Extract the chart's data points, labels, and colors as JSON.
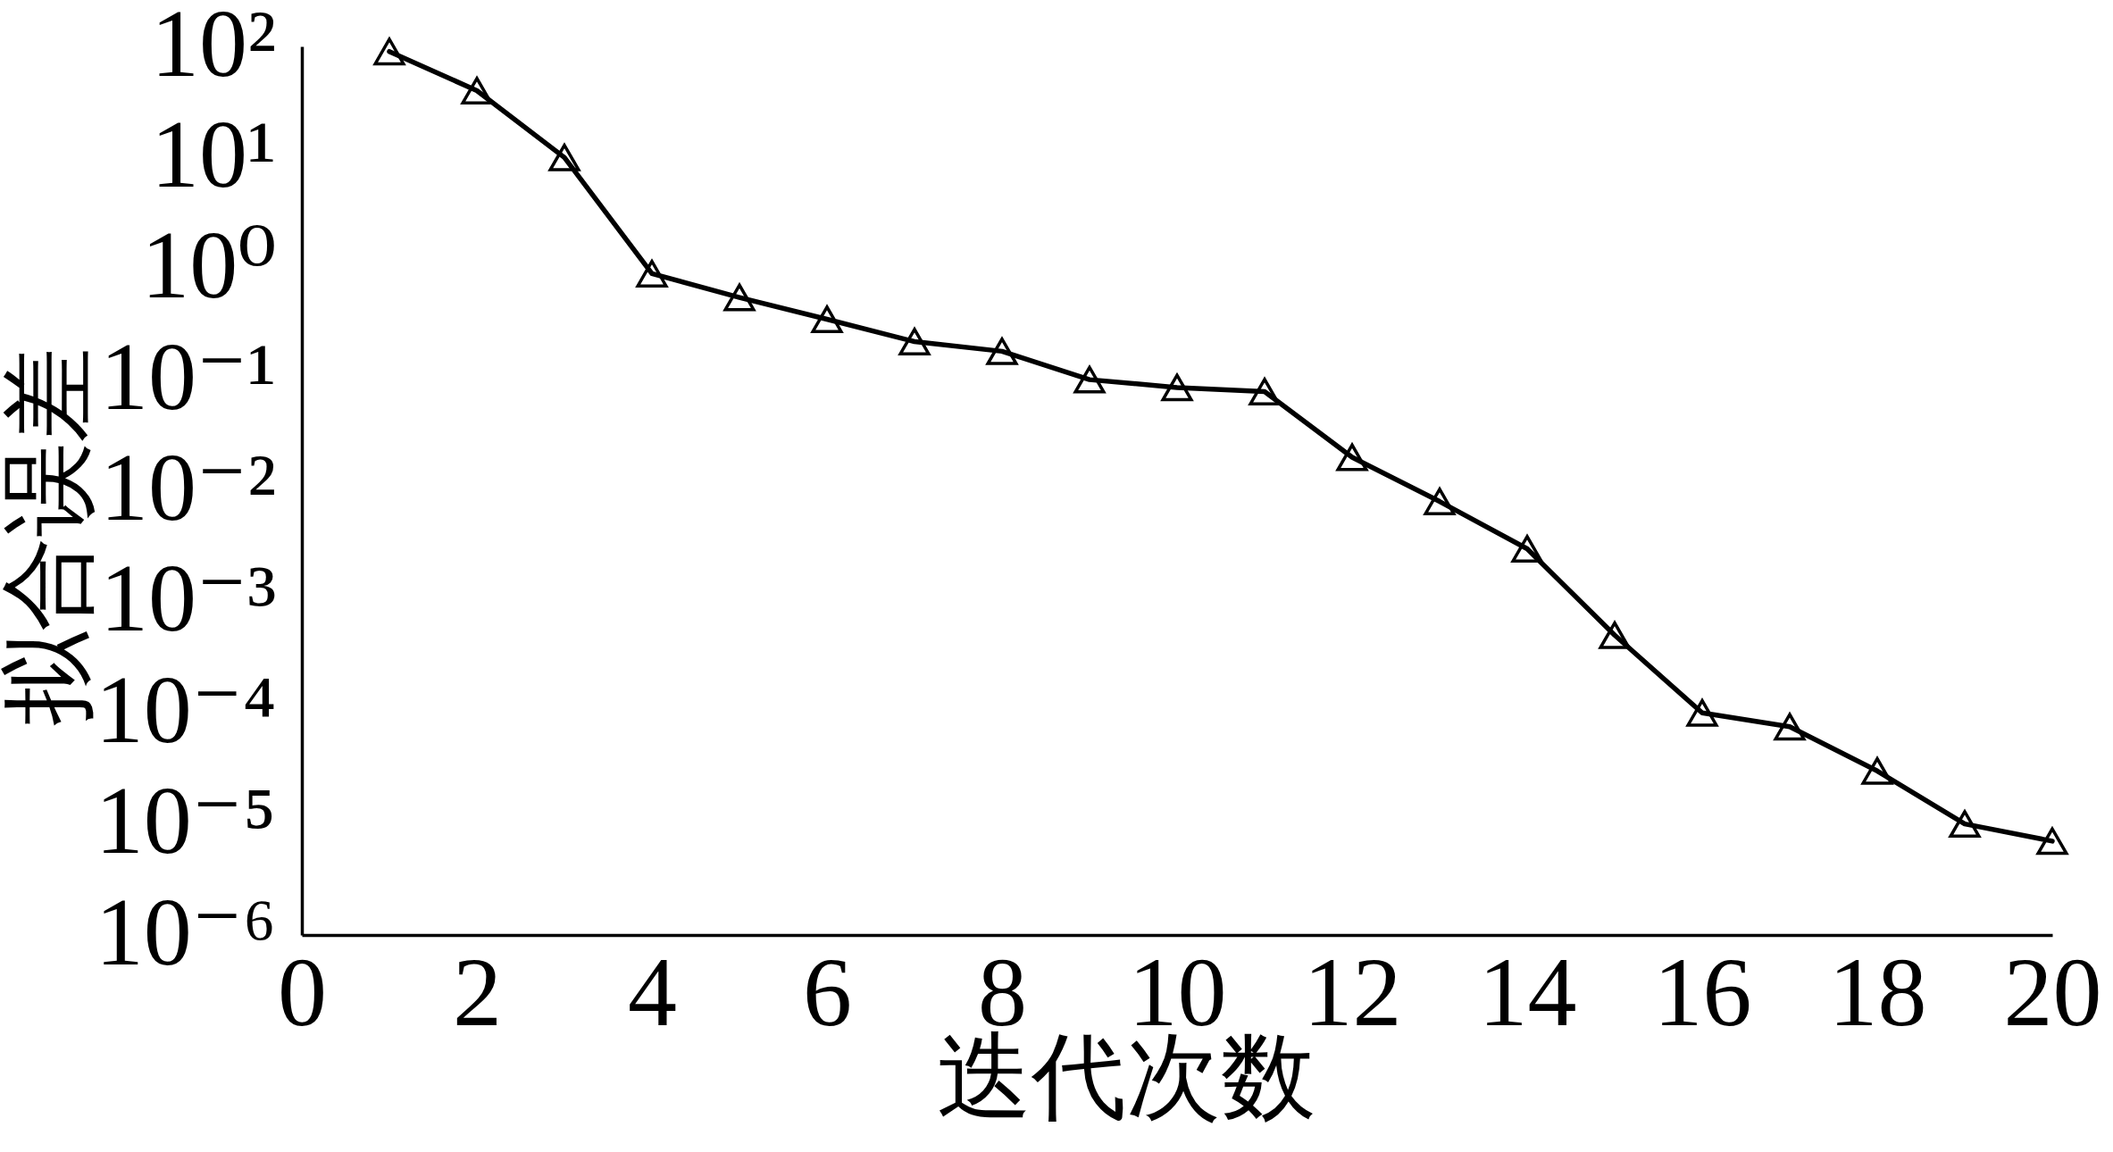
{
  "chart_data": {
    "type": "line",
    "xlabel": "迭代次数",
    "ylabel": "拟合误差",
    "x": [
      1,
      2,
      3,
      4,
      5,
      6,
      7,
      8,
      9,
      10,
      11,
      12,
      13,
      14,
      15,
      16,
      17,
      18,
      19,
      20
    ],
    "series": [
      {
        "color": "#000000",
        "values": [
          90,
          40,
          10,
          0.9,
          0.55,
          0.35,
          0.22,
          0.18,
          0.1,
          0.085,
          0.078,
          0.02,
          0.008,
          0.003,
          0.0005,
          0.0001,
          7.5e-05,
          3e-05,
          1e-05,
          7e-06
        ]
      }
    ],
    "xlim": [
      0,
      20
    ],
    "xticks": [
      0,
      2,
      4,
      6,
      8,
      10,
      12,
      14,
      16,
      18,
      20
    ],
    "ylim": [
      1e-06,
      100
    ],
    "yticks": [
      {
        "value": 100,
        "label": "10²"
      },
      {
        "value": 10,
        "label": "10¹"
      },
      {
        "value": 1,
        "label": "10⁰"
      },
      {
        "value": 0.1,
        "label": "10⁻¹"
      },
      {
        "value": 0.01,
        "label": "10⁻²"
      },
      {
        "value": 0.001,
        "label": "10⁻³"
      },
      {
        "value": 0.0001,
        "label": "10⁻⁴"
      },
      {
        "value": 1e-05,
        "label": "10⁻⁵"
      },
      {
        "value": 1e-06,
        "label": "10⁻⁶"
      }
    ],
    "log": true,
    "grid": false,
    "marker": "triangle",
    "line_style": "solid"
  }
}
